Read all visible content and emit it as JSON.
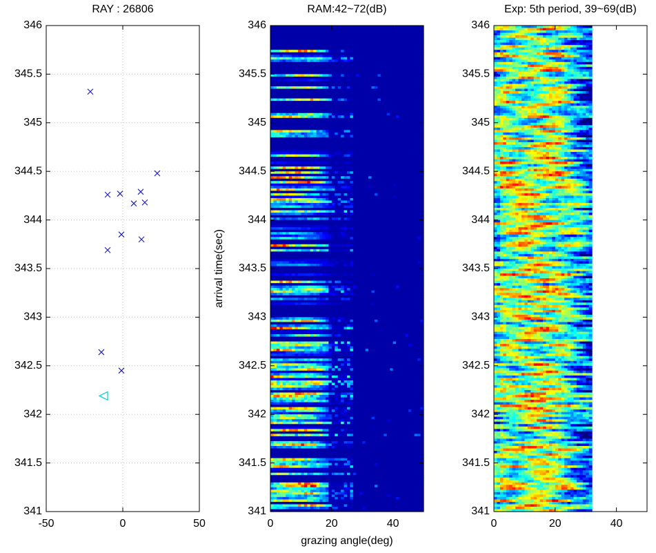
{
  "chart_data": [
    {
      "type": "scatter",
      "title": "RAY : 26806",
      "xlim": [
        -50,
        50
      ],
      "xticks": [
        -50,
        0,
        50
      ],
      "ylim": [
        341,
        346
      ],
      "yticks": [
        341,
        341.5,
        342,
        342.5,
        343,
        343.5,
        344,
        344.5,
        345,
        345.5,
        346
      ],
      "grid": true,
      "series": [
        {
          "color": "#2020c8",
          "marker": "x",
          "x": [
            -21.2,
            22.5,
            -9.9,
            -1.8,
            11.7,
            7.2,
            14.4,
            -0.9,
            12.2,
            -9.9,
            -14,
            -0.9
          ],
          "values": [
            345.32,
            344.48,
            344.26,
            344.27,
            344.29,
            344.17,
            344.18,
            343.85,
            343.8,
            343.69,
            342.64,
            342.45
          ]
        },
        {
          "color": "#00d0d0",
          "marker": "triangle-left",
          "x": [
            -12.6
          ],
          "values": [
            342.19
          ]
        }
      ]
    },
    {
      "type": "heatmap",
      "title": "RAM:42~72(dB)",
      "xlabel": "grazing angle(deg)",
      "ylabel": "arrival time(sec)",
      "xlim": [
        0,
        50
      ],
      "xticks": [
        0,
        20,
        40
      ],
      "ylim": [
        341,
        346
      ],
      "yticks": [
        341,
        341.5,
        342,
        342.5,
        343,
        343.5,
        344,
        344.5,
        345,
        345.5,
        346
      ],
      "image_xlim": [
        0,
        50
      ],
      "colormap": "jet",
      "pattern": "model"
    },
    {
      "type": "heatmap",
      "title": "Exp: 5th period, 39~69(dB)",
      "xlim": [
        0,
        50
      ],
      "xticks": [
        0,
        20,
        40
      ],
      "ylim": [
        341,
        346
      ],
      "yticks": [
        341,
        341.5,
        342,
        342.5,
        343,
        343.5,
        344,
        344.5,
        345,
        345.5,
        346
      ],
      "image_xlim": [
        0,
        32
      ],
      "colormap": "jet",
      "pattern": "experiment"
    }
  ]
}
